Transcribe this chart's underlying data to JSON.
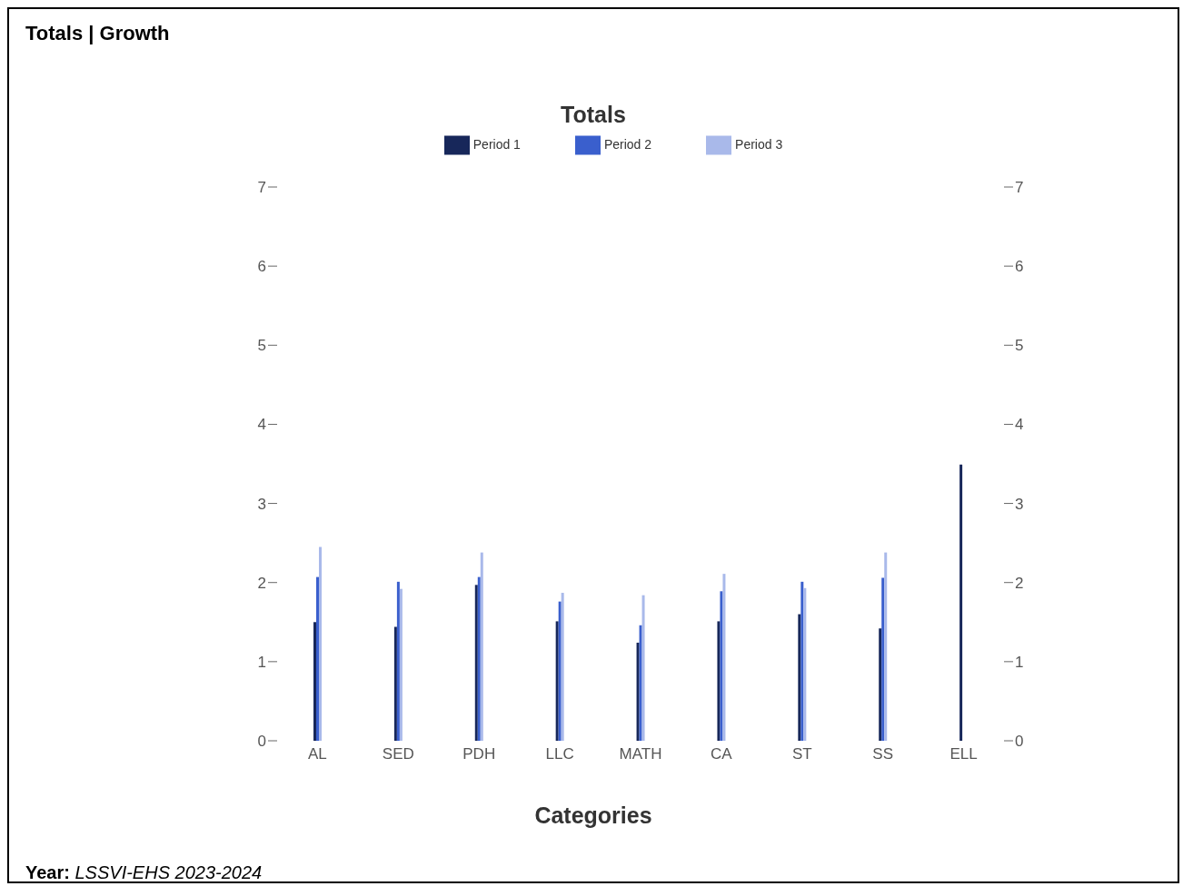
{
  "chart_data": {
    "type": "bar",
    "title": "Totals | Growth",
    "subtitle": "Totals",
    "xlabel": "Categories",
    "categories": [
      "AL",
      "SED",
      "PDH",
      "LLC",
      "MATH",
      "CA",
      "ST",
      "SS",
      "ELL"
    ],
    "series": [
      {
        "name": "Period 1",
        "color": "#17275a",
        "values": [
          1.5,
          1.44,
          1.97,
          1.51,
          1.24,
          1.51,
          1.6,
          1.42,
          3.49
        ]
      },
      {
        "name": "Period 2",
        "color": "#3a5fcd",
        "values": [
          2.07,
          2.01,
          2.07,
          1.76,
          1.46,
          1.89,
          2.01,
          2.06,
          null
        ]
      },
      {
        "name": "Period 3",
        "color": "#a9b9ea",
        "values": [
          2.45,
          1.92,
          2.38,
          1.87,
          1.84,
          2.11,
          1.93,
          2.38,
          null
        ]
      }
    ],
    "ylim": [
      0,
      7
    ],
    "yticks": [
      0,
      1,
      2,
      3,
      4,
      5,
      6,
      7
    ],
    "y2lim": [
      0,
      7
    ],
    "y2ticks": [
      0,
      1,
      2,
      3,
      4,
      5,
      6,
      7
    ],
    "legend": "top",
    "grid": false,
    "annotations": [
      "Year: LSSVI-EHS 2023-2024"
    ]
  }
}
